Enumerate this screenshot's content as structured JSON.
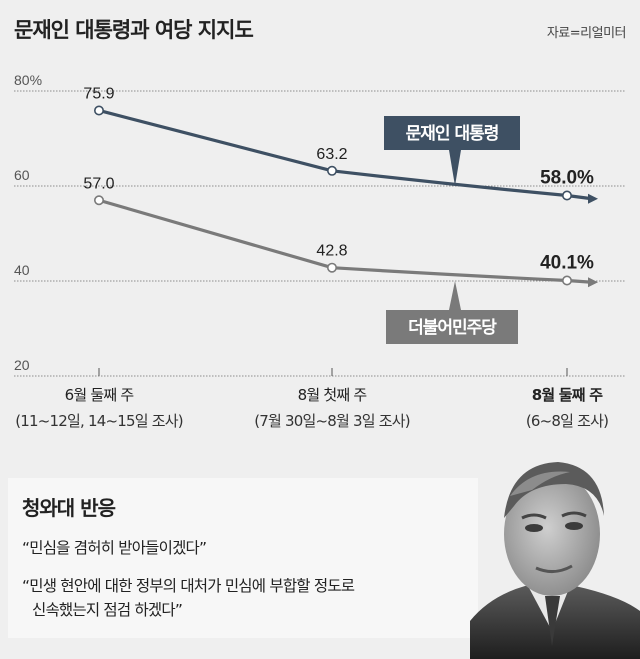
{
  "header": {
    "title": "문재인 대통령과 여당 지지도",
    "source": "자료=리얼미터"
  },
  "chart_data": {
    "type": "line",
    "title": "문재인 대통령과 여당 지지도",
    "categories": [
      "6월 둘째 주",
      "8월 첫째 주",
      "8월 둘째 주"
    ],
    "category_periods": [
      "(11~12일, 14~15일 조사)",
      "(7월 30일~8월 3일 조사)",
      "(6~8일 조사)"
    ],
    "yticks": [
      "80%",
      "60",
      "40",
      "20"
    ],
    "ytick_values": [
      80,
      60,
      40,
      20
    ],
    "ylim": [
      20,
      80
    ],
    "series": [
      {
        "name": "문재인 대통령",
        "values": [
          75.9,
          63.2,
          58.0
        ],
        "labels": [
          "75.9",
          "63.2",
          "58.0%"
        ],
        "color": "#3e5063"
      },
      {
        "name": "더불어민주당",
        "values": [
          57.0,
          42.8,
          40.1
        ],
        "labels": [
          "57.0",
          "42.8",
          "40.1%"
        ],
        "color": "#7a7a7a"
      }
    ],
    "legend": "inline labels",
    "grid": true
  },
  "reaction": {
    "title": "청와대 반응",
    "quote1": "“민심을 겸허히 받아들이겠다”",
    "quote2_line1": "“민생 현안에 대한 정부의 대처가 민심에 부합할 정도로",
    "quote2_line2": "신속했는지 점검 하겠다”"
  }
}
